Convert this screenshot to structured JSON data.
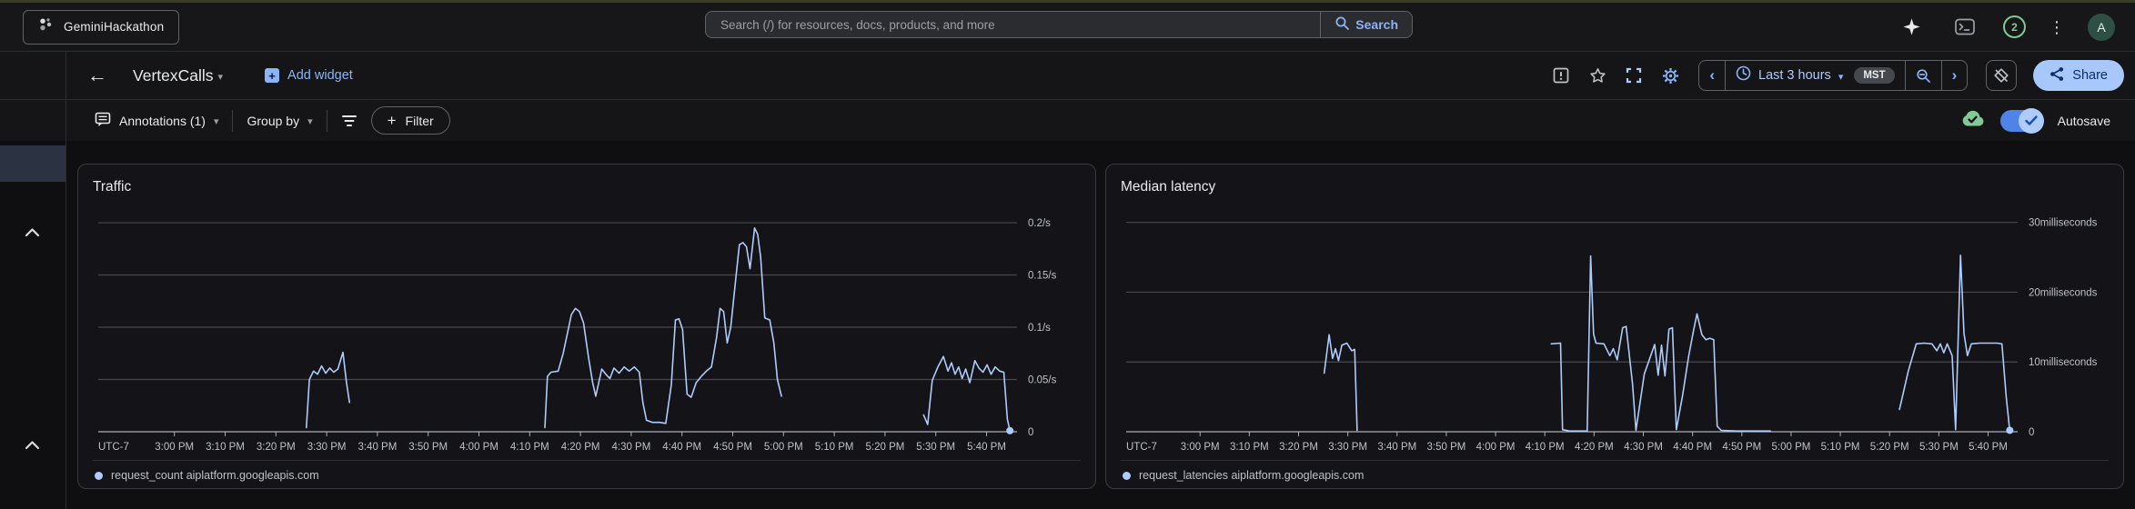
{
  "icons": {
    "caret_down": "▾",
    "back_arrow": "←",
    "chevron_left": "‹",
    "chevron_right": "›",
    "more_vertical": "⋮",
    "plus": "+"
  },
  "colors": {
    "accent_blue": "#8ab4f8",
    "line_blue": "#aecbfa",
    "green": "#81c995",
    "share_bg": "#a8c7fa",
    "share_text": "#082e6b"
  },
  "top_bar": {
    "project_name": "GeminiHackathon",
    "search_placeholder": "Search (/) for resources, docs, products, and more",
    "search_button_label": "Search",
    "notification_count": "2",
    "avatar_letter": "A"
  },
  "header": {
    "title": "VertexCalls",
    "add_widget_label": "Add widget",
    "time_range_label": "Last 3 hours",
    "timezone_badge": "MST",
    "share_label": "Share"
  },
  "toolbar": {
    "annotations_label": "Annotations (1)",
    "group_by_label": "Group by",
    "filter_label": "Filter",
    "autosave_label": "Autosave"
  },
  "chart_data": [
    {
      "type": "line",
      "title": "Traffic",
      "y_unit": "/s",
      "line_color": "#aecbfa",
      "ylim": [
        0,
        0.207
      ],
      "y_zero_label": "0",
      "y_ticks": [
        {
          "v": 0.05,
          "label": "0.05/s"
        },
        {
          "v": 0.1,
          "label": "0.1/s"
        },
        {
          "v": 0.15,
          "label": "0.15/s"
        },
        {
          "v": 0.2,
          "label": "0.2/s"
        }
      ],
      "x_axis": {
        "utc_label": "UTC-7",
        "t_min": -15,
        "t_max": 166,
        "tick_step_min": 10,
        "tick_labels": [
          "3:00 PM",
          "3:10 PM",
          "3:20 PM",
          "3:30 PM",
          "3:40 PM",
          "3:50 PM",
          "4:00 PM",
          "4:10 PM",
          "4:20 PM",
          "4:30 PM",
          "4:40 PM",
          "4:50 PM",
          "5:00 PM",
          "5:10 PM",
          "5:20 PM",
          "5:30 PM",
          "5:40 PM"
        ]
      },
      "layout": {
        "label_gutter": 70
      },
      "series": [
        {
          "name": "request_count aiplatform.googleapis.com",
          "segments": [
            [
              [
                26,
                0.004
              ],
              [
                26.6,
                0.05
              ],
              [
                27.4,
                0.058
              ],
              [
                28.2,
                0.055
              ],
              [
                29,
                0.063
              ],
              [
                29.8,
                0.056
              ],
              [
                30.6,
                0.061
              ],
              [
                31.4,
                0.057
              ],
              [
                32.2,
                0.06
              ],
              [
                33.2,
                0.076
              ],
              [
                33.9,
                0.047
              ],
              [
                34.5,
                0.028
              ]
            ],
            [
              [
                73,
                0.004
              ],
              [
                73.5,
                0.053
              ],
              [
                74.2,
                0.057
              ],
              [
                75.6,
                0.058
              ],
              [
                76.6,
                0.075
              ],
              [
                78.2,
                0.112
              ],
              [
                79,
                0.118
              ],
              [
                79.8,
                0.115
              ],
              [
                80.6,
                0.104
              ],
              [
                81.6,
                0.071
              ],
              [
                82.4,
                0.047
              ],
              [
                83,
                0.034
              ],
              [
                84.2,
                0.06
              ],
              [
                85,
                0.055
              ],
              [
                85.8,
                0.051
              ],
              [
                86.6,
                0.061
              ],
              [
                87.6,
                0.056
              ],
              [
                88.6,
                0.062
              ],
              [
                89.6,
                0.058
              ],
              [
                90.6,
                0.062
              ],
              [
                91.6,
                0.057
              ],
              [
                92.3,
                0.028
              ],
              [
                93,
                0.011
              ],
              [
                94.2,
                0.009
              ],
              [
                95.6,
                0.009
              ],
              [
                96.8,
                0.008
              ],
              [
                97.9,
                0.045
              ],
              [
                98.7,
                0.107
              ],
              [
                99.4,
                0.108
              ],
              [
                100.1,
                0.098
              ],
              [
                101,
                0.036
              ],
              [
                101.8,
                0.033
              ],
              [
                102.8,
                0.047
              ],
              [
                103.8,
                0.053
              ],
              [
                104.8,
                0.058
              ],
              [
                105.8,
                0.062
              ],
              [
                106.8,
                0.09
              ],
              [
                107.5,
                0.118
              ],
              [
                108.2,
                0.115
              ],
              [
                108.9,
                0.085
              ],
              [
                109.6,
                0.1
              ],
              [
                110.6,
                0.147
              ],
              [
                111.3,
                0.179
              ],
              [
                112,
                0.181
              ],
              [
                112.7,
                0.177
              ],
              [
                113.4,
                0.156
              ],
              [
                114.3,
                0.195
              ],
              [
                114.9,
                0.189
              ],
              [
                115.5,
                0.167
              ],
              [
                116.3,
                0.109
              ],
              [
                117.3,
                0.107
              ],
              [
                118.1,
                0.085
              ],
              [
                118.8,
                0.05
              ],
              [
                119.6,
                0.034
              ]
            ],
            [
              [
                147.6,
                0.016
              ],
              [
                148.4,
                0.007
              ],
              [
                149.3,
                0.049
              ],
              [
                150.4,
                0.062
              ],
              [
                151.5,
                0.072
              ],
              [
                152.4,
                0.058
              ],
              [
                153.1,
                0.066
              ],
              [
                153.8,
                0.055
              ],
              [
                154.5,
                0.062
              ],
              [
                155.2,
                0.051
              ],
              [
                155.9,
                0.06
              ],
              [
                156.7,
                0.047
              ],
              [
                157.7,
                0.068
              ],
              [
                158.5,
                0.061
              ],
              [
                159.3,
                0.057
              ],
              [
                160.1,
                0.064
              ],
              [
                160.9,
                0.055
              ],
              [
                161.7,
                0.062
              ],
              [
                162.6,
                0.058
              ],
              [
                163.4,
                0.057
              ],
              [
                164.1,
                0.012
              ],
              [
                164.6,
                0.001
              ]
            ]
          ]
        }
      ]
    },
    {
      "type": "line",
      "title": "Median latency",
      "y_unit": "milliseconds",
      "line_color": "#aecbfa",
      "ylim": [
        0,
        31
      ],
      "y_zero_label": "0",
      "y_ticks": [
        {
          "v": 10,
          "label": "10milliseconds"
        },
        {
          "v": 20,
          "label": "20milliseconds"
        },
        {
          "v": 30,
          "label": "30milliseconds"
        }
      ],
      "x_axis": {
        "utc_label": "UTC-7",
        "t_min": -15,
        "t_max": 166,
        "tick_step_min": 10,
        "tick_labels": [
          "3:00 PM",
          "3:10 PM",
          "3:20 PM",
          "3:30 PM",
          "3:40 PM",
          "3:50 PM",
          "4:00 PM",
          "4:10 PM",
          "4:20 PM",
          "4:30 PM",
          "4:40 PM",
          "4:50 PM",
          "5:00 PM",
          "5:10 PM",
          "5:20 PM",
          "5:30 PM",
          "5:40 PM"
        ]
      },
      "layout": {
        "label_gutter": 100
      },
      "series": [
        {
          "name": "request_latencies aiplatform.googleapis.com",
          "segments": [
            [
              [
                25.2,
                8.4
              ],
              [
                26.2,
                13.9
              ],
              [
                26.9,
                10.5
              ],
              [
                27.5,
                11.9
              ],
              [
                28.1,
                10.2
              ],
              [
                28.8,
                12.4
              ],
              [
                29.8,
                12.7
              ],
              [
                30.8,
                11.6
              ],
              [
                31.4,
                11.8
              ],
              [
                31.9,
                0.2
              ]
            ],
            [
              [
                71.3,
                12.6
              ],
              [
                73.2,
                12.7
              ],
              [
                73.6,
                0.3
              ],
              [
                75,
                0.1
              ],
              [
                78.6,
                0.1
              ],
              [
                79.3,
                25.2
              ],
              [
                79.9,
                14
              ],
              [
                80.4,
                12.7
              ],
              [
                82,
                12.6
              ],
              [
                83.2,
                10.9
              ],
              [
                83.9,
                11.9
              ],
              [
                84.7,
                10.3
              ],
              [
                85.8,
                14.9
              ],
              [
                86.5,
                15.1
              ],
              [
                87.8,
                6.9
              ],
              [
                88.5,
                0.2
              ],
              [
                90.2,
                8.3
              ],
              [
                92.3,
                12.5
              ],
              [
                93,
                8.1
              ],
              [
                93.7,
                12.4
              ],
              [
                94.4,
                8
              ],
              [
                95.2,
                14.7
              ],
              [
                95.9,
                14.9
              ],
              [
                96.7,
                0.3
              ],
              [
                98,
                5.3
              ],
              [
                99.2,
                10.8
              ],
              [
                100.2,
                14.5
              ],
              [
                100.9,
                16.9
              ],
              [
                101.9,
                13.9
              ],
              [
                102.7,
                13.2
              ],
              [
                103.5,
                13.4
              ],
              [
                104.3,
                13.2
              ],
              [
                105,
                0.8
              ],
              [
                105.8,
                0.2
              ],
              [
                109,
                0.1
              ],
              [
                112.5,
                0.1
              ],
              [
                115.8,
                0.1
              ]
            ],
            [
              [
                142,
                3.2
              ],
              [
                143.8,
                8.7
              ],
              [
                145.4,
                12.6
              ],
              [
                147,
                12.7
              ],
              [
                148.6,
                12.6
              ],
              [
                149.6,
                11.6
              ],
              [
                150.3,
                12.6
              ],
              [
                151,
                11.3
              ],
              [
                151.7,
                12.6
              ],
              [
                152.7,
                10.9
              ],
              [
                153.4,
                0.3
              ],
              [
                154.4,
                25.3
              ],
              [
                155.1,
                14.1
              ],
              [
                155.8,
                10.9
              ],
              [
                156.6,
                12.6
              ],
              [
                158.2,
                12.7
              ],
              [
                160.2,
                12.7
              ],
              [
                161.8,
                12.7
              ],
              [
                162.8,
                12.6
              ],
              [
                163.7,
                4.9
              ],
              [
                164.4,
                0.2
              ]
            ]
          ]
        }
      ]
    }
  ]
}
